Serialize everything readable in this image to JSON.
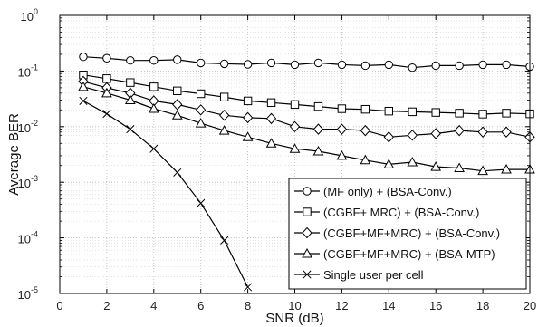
{
  "chart_data": {
    "type": "line",
    "xlabel": "SNR (dB)",
    "ylabel": "Average BER",
    "xlim": [
      0,
      20
    ],
    "ylim": [
      1e-05,
      1
    ],
    "yscale": "log",
    "grid": true,
    "legend_position": "bottom-right",
    "x_ticks": [
      "0",
      "2",
      "4",
      "6",
      "8",
      "10",
      "12",
      "14",
      "16",
      "18",
      "20"
    ],
    "y_ticks": [
      {
        "base": "10",
        "exp": "0"
      },
      {
        "base": "10",
        "exp": "-1"
      },
      {
        "base": "10",
        "exp": "-2"
      },
      {
        "base": "10",
        "exp": "-3"
      },
      {
        "base": "10",
        "exp": "-4"
      },
      {
        "base": "10",
        "exp": "-5"
      }
    ],
    "series": [
      {
        "name": "(MF only) + (BSA-Conv.)",
        "marker": "circle",
        "x": [
          1,
          2,
          3,
          4,
          5,
          6,
          7,
          8,
          9,
          10,
          11,
          12,
          13,
          14,
          15,
          16,
          17,
          18,
          19,
          20
        ],
        "y": [
          0.18,
          0.17,
          0.155,
          0.155,
          0.16,
          0.14,
          0.135,
          0.132,
          0.14,
          0.13,
          0.14,
          0.13,
          0.125,
          0.13,
          0.115,
          0.125,
          0.125,
          0.13,
          0.13,
          0.12
        ]
      },
      {
        "name": "(CGBF+ MRC) + (BSA-Conv.)",
        "marker": "square",
        "x": [
          1,
          2,
          3,
          4,
          5,
          6,
          7,
          8,
          9,
          10,
          11,
          12,
          13,
          14,
          15,
          16,
          17,
          18,
          19,
          20
        ],
        "y": [
          0.085,
          0.073,
          0.062,
          0.052,
          0.044,
          0.039,
          0.034,
          0.029,
          0.027,
          0.025,
          0.023,
          0.021,
          0.0205,
          0.019,
          0.0185,
          0.018,
          0.0175,
          0.0168,
          0.0175,
          0.017
        ]
      },
      {
        "name": "(CGBF+MF+MRC) + (BSA-Conv.)",
        "marker": "diamond",
        "x": [
          1,
          2,
          3,
          4,
          5,
          6,
          7,
          8,
          9,
          10,
          11,
          12,
          13,
          14,
          15,
          16,
          17,
          18,
          19,
          20
        ],
        "y": [
          0.065,
          0.05,
          0.04,
          0.029,
          0.025,
          0.02,
          0.016,
          0.0145,
          0.014,
          0.01,
          0.009,
          0.009,
          0.0085,
          0.0065,
          0.007,
          0.0075,
          0.0085,
          0.008,
          0.008,
          0.0065
        ]
      },
      {
        "name": "(CGBF+MF+MRC) + (BSA-MTP)",
        "marker": "triangle",
        "x": [
          1,
          2,
          3,
          4,
          5,
          6,
          7,
          8,
          9,
          10,
          11,
          12,
          13,
          14,
          15,
          16,
          17,
          18,
          19,
          20
        ],
        "y": [
          0.052,
          0.04,
          0.03,
          0.021,
          0.016,
          0.0115,
          0.0085,
          0.0065,
          0.005,
          0.004,
          0.0036,
          0.003,
          0.0025,
          0.0021,
          0.0023,
          0.0019,
          0.0018,
          0.0016,
          0.0017,
          0.0017
        ]
      },
      {
        "name": "Single user per cell",
        "marker": "x",
        "x": [
          1,
          2,
          3,
          4,
          5,
          6,
          7,
          8
        ],
        "y": [
          0.029,
          0.017,
          0.009,
          0.004,
          0.0015,
          0.00042,
          9e-05,
          1.3e-05
        ]
      }
    ]
  }
}
